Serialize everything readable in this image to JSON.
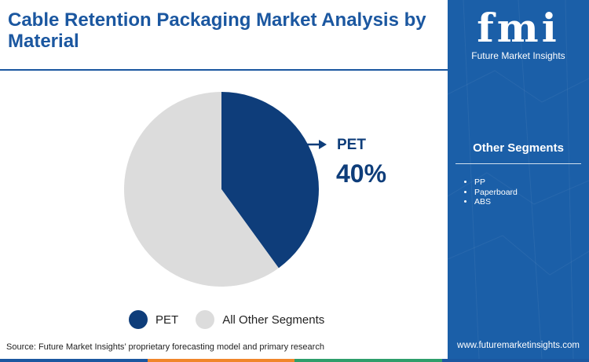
{
  "title": "Cable Retention Packaging Market Analysis by Material",
  "chart_data": {
    "type": "pie",
    "slices": [
      {
        "name": "PET",
        "value": 40,
        "color": "#0e3d7a"
      },
      {
        "name": "All Other Segments",
        "value": 60,
        "color": "#dcdcdc"
      }
    ],
    "callout": {
      "label": "PET",
      "value": "40%"
    },
    "legend": [
      "PET",
      "All Other Segments"
    ],
    "legend_placement": "bottom"
  },
  "source": "Source: Future Market Insights’ proprietary forecasting model and primary research",
  "sidebar": {
    "logo_letters": "fmi",
    "logo_name": "Future Market Insights",
    "heading": "Other Segments",
    "items": [
      "PP",
      "Paperboard",
      "ABS"
    ],
    "website": "www.futuremarketinsights.com",
    "background": "#1b5fa8"
  },
  "colors": {
    "accent": "#1b57a0",
    "bottom_bar": [
      "#1b57a0",
      "#f0862b",
      "#2e9e6b",
      "#1b57a0"
    ]
  }
}
